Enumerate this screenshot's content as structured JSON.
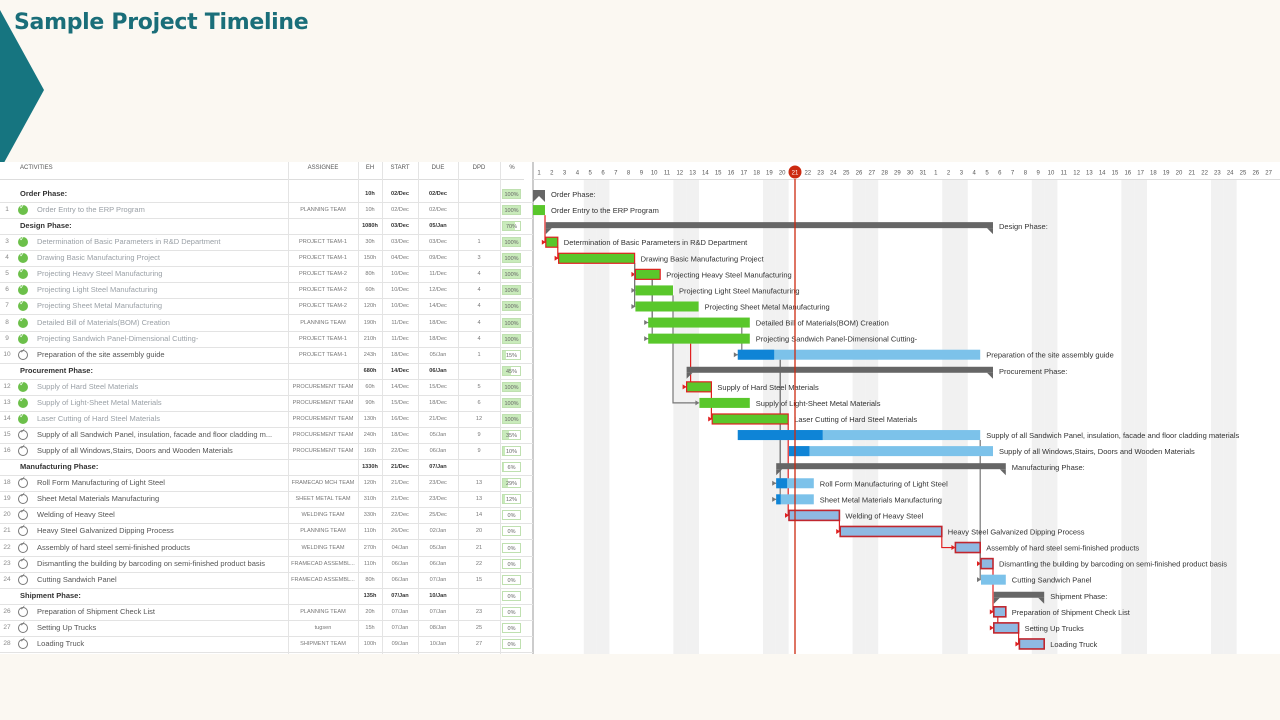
{
  "title": "Sample Project Timeline",
  "columns": {
    "activities": "ACTIVITIES",
    "assignee": "ASSIGNEE",
    "eh": "EH",
    "start": "START",
    "due": "DUE",
    "dpd": "DPD",
    "pct": "%"
  },
  "today": "21",
  "days": [
    "1",
    "2",
    "3",
    "4",
    "5",
    "6",
    "7",
    "8",
    "9",
    "10",
    "11",
    "12",
    "13",
    "14",
    "15",
    "16",
    "17",
    "18",
    "19",
    "20",
    "21",
    "22",
    "23",
    "24",
    "25",
    "26",
    "27",
    "28",
    "29",
    "30",
    "31",
    "1",
    "2",
    "3",
    "4",
    "5",
    "6",
    "7",
    "8",
    "9",
    "10",
    "11",
    "12",
    "13",
    "14",
    "15",
    "16",
    "17",
    "18",
    "19",
    "20",
    "21",
    "22",
    "23",
    "24",
    "25",
    "26",
    "27"
  ],
  "colors": {
    "done": "#59c72b",
    "active": "#0f84d6",
    "light": "#7cc2ea",
    "late": "#e02020",
    "phase": "#666666",
    "today": "#cc2a10",
    "teal": "#167580"
  },
  "rows": [
    {
      "num": "",
      "name": "Order Phase:",
      "assignee": "",
      "eh": "10h",
      "start": "02/Dec",
      "due": "02/Dec",
      "dpd": "",
      "pct": "100%",
      "p": 100,
      "type": "phase",
      "bar": [
        1,
        1
      ],
      "label": "Order Phase:"
    },
    {
      "num": "1",
      "name": "Order Entry to the ERP Program",
      "assignee": "PLANNING TEAM",
      "eh": "10h",
      "start": "02/Dec",
      "due": "02/Dec",
      "dpd": "",
      "pct": "100%",
      "p": 100,
      "type": "done",
      "bar": [
        1,
        1
      ],
      "label": "Order Entry to the ERP Program"
    },
    {
      "num": "",
      "name": "Design Phase:",
      "assignee": "",
      "eh": "1080h",
      "start": "03/Dec",
      "due": "05/Jan",
      "dpd": "",
      "pct": "70%",
      "p": 70,
      "type": "phase",
      "bar": [
        2,
        36
      ],
      "label": "Design Phase:"
    },
    {
      "num": "3",
      "name": "Determination of Basic Parameters in R&D Department",
      "assignee": "PROJECT TEAM-1",
      "eh": "30h",
      "start": "03/Dec",
      "due": "03/Dec",
      "dpd": "1",
      "pct": "100%",
      "p": 100,
      "type": "done",
      "bar": [
        2,
        2
      ],
      "label": "Determination of Basic Parameters in R&D Department"
    },
    {
      "num": "4",
      "name": "Drawing Basic Manufacturing Project",
      "assignee": "PROJECT TEAM-1",
      "eh": "150h",
      "start": "04/Dec",
      "due": "09/Dec",
      "dpd": "3",
      "pct": "100%",
      "p": 100,
      "type": "done",
      "bar": [
        3,
        8
      ],
      "label": "Drawing Basic Manufacturing Project"
    },
    {
      "num": "5",
      "name": "Projecting Heavy Steel Manufacturing",
      "assignee": "PROJECT TEAM-2",
      "eh": "80h",
      "start": "10/Dec",
      "due": "11/Dec",
      "dpd": "4",
      "pct": "100%",
      "p": 100,
      "type": "done",
      "bar": [
        9,
        10
      ],
      "label": "Projecting Heavy Steel Manufacturing"
    },
    {
      "num": "6",
      "name": "Projecting Light Steel Manufacturing",
      "assignee": "PROJECT TEAM-2",
      "eh": "60h",
      "start": "10/Dec",
      "due": "12/Dec",
      "dpd": "4",
      "pct": "100%",
      "p": 100,
      "type": "done",
      "bar": [
        9,
        11
      ],
      "label": "Projecting Light Steel Manufacturing"
    },
    {
      "num": "7",
      "name": "Projecting Sheet Metal Manufacturing",
      "assignee": "PROJECT TEAM-2",
      "eh": "120h",
      "start": "10/Dec",
      "due": "14/Dec",
      "dpd": "4",
      "pct": "100%",
      "p": 100,
      "type": "done",
      "bar": [
        9,
        13
      ],
      "label": "Projecting Sheet Metal Manufacturing"
    },
    {
      "num": "8",
      "name": "Detailed Bill of Materials(BOM) Creation",
      "assignee": "PLANNING TEAM",
      "eh": "190h",
      "start": "11/Dec",
      "due": "18/Dec",
      "dpd": "4",
      "pct": "100%",
      "p": 100,
      "type": "done",
      "bar": [
        10,
        17
      ],
      "label": "Detailed Bill of Materials(BOM) Creation"
    },
    {
      "num": "9",
      "name": "Projecting Sandwich Panel-Dimensional Cutting-",
      "assignee": "PROJECT TEAM-1",
      "eh": "210h",
      "start": "11/Dec",
      "due": "18/Dec",
      "dpd": "4",
      "pct": "100%",
      "p": 100,
      "type": "done",
      "bar": [
        10,
        17
      ],
      "label": "Projecting Sandwich Panel-Dimensional Cutting-"
    },
    {
      "num": "10",
      "name": "Preparation of the site assembly guide",
      "assignee": "PROJECT TEAM-1",
      "eh": "243h",
      "start": "18/Dec",
      "due": "05/Jan",
      "dpd": "1",
      "pct": "15%",
      "p": 15,
      "type": "active",
      "bar": [
        17,
        35
      ],
      "label": "Preparation of the site assembly guide"
    },
    {
      "num": "",
      "name": "Procurement Phase:",
      "assignee": "",
      "eh": "680h",
      "start": "14/Dec",
      "due": "06/Jan",
      "dpd": "",
      "pct": "45%",
      "p": 45,
      "type": "phase",
      "bar": [
        13,
        36
      ],
      "label": "Procurement Phase:"
    },
    {
      "num": "12",
      "name": "Supply of Hard Steel Materials",
      "assignee": "PROCUREMENT TEAM",
      "eh": "60h",
      "start": "14/Dec",
      "due": "15/Dec",
      "dpd": "5",
      "pct": "100%",
      "p": 100,
      "type": "done",
      "bar": [
        13,
        14
      ],
      "label": "Supply of Hard Steel Materials"
    },
    {
      "num": "13",
      "name": "Supply of Light-Sheet Metal Materials",
      "assignee": "PROCUREMENT TEAM",
      "eh": "90h",
      "start": "15/Dec",
      "due": "18/Dec",
      "dpd": "6",
      "pct": "100%",
      "p": 100,
      "type": "done",
      "bar": [
        14,
        17
      ],
      "label": "Supply of Light-Sheet Metal Materials"
    },
    {
      "num": "14",
      "name": "Laser Cutting of Hard Steel Materials",
      "assignee": "PROCUREMENT TEAM",
      "eh": "130h",
      "start": "16/Dec",
      "due": "21/Dec",
      "dpd": "12",
      "pct": "100%",
      "p": 100,
      "type": "done",
      "bar": [
        15,
        20
      ],
      "label": "Laser Cutting of Hard Steel Materials"
    },
    {
      "num": "15",
      "name": "Supply of all Sandwich Panel, insulation, facade and floor cladding m...",
      "assignee": "PROCUREMENT TEAM",
      "eh": "240h",
      "start": "18/Dec",
      "due": "05/Jan",
      "dpd": "9",
      "pct": "35%",
      "p": 35,
      "type": "active",
      "bar": [
        17,
        35
      ],
      "label": "Supply of all Sandwich Panel, insulation, facade and floor cladding materials"
    },
    {
      "num": "16",
      "name": "Supply of all Windows,Stairs, Doors and Wooden Materials",
      "assignee": "PROCUREMENT TEAM",
      "eh": "160h",
      "start": "22/Dec",
      "due": "06/Jan",
      "dpd": "9",
      "pct": "10%",
      "p": 10,
      "type": "active",
      "bar": [
        21,
        36
      ],
      "label": "Supply of all Windows,Stairs, Doors and Wooden Materials"
    },
    {
      "num": "",
      "name": "Manufacturing Phase:",
      "assignee": "",
      "eh": "1330h",
      "start": "21/Dec",
      "due": "07/Jan",
      "dpd": "",
      "pct": "6%",
      "p": 6,
      "type": "phase",
      "bar": [
        20,
        37
      ],
      "label": "Manufacturing Phase:"
    },
    {
      "num": "18",
      "name": "Roll Form Manufacturing of Light Steel",
      "assignee": "FRAMECAD MCH TEAM",
      "eh": "120h",
      "start": "21/Dec",
      "due": "23/Dec",
      "dpd": "13",
      "pct": "29%",
      "p": 29,
      "type": "active",
      "bar": [
        20,
        22
      ],
      "label": "Roll Form Manufacturing of Light Steel"
    },
    {
      "num": "19",
      "name": "Sheet Metal Materials Manufacturing",
      "assignee": "SHEET METAL TEAM",
      "eh": "310h",
      "start": "21/Dec",
      "due": "23/Dec",
      "dpd": "13",
      "pct": "12%",
      "p": 12,
      "type": "active",
      "bar": [
        20,
        22
      ],
      "label": "Sheet Metal Materials Manufacturing"
    },
    {
      "num": "20",
      "name": "Welding of Heavy Steel",
      "assignee": "WELDING TEAM",
      "eh": "330h",
      "start": "22/Dec",
      "due": "25/Dec",
      "dpd": "14",
      "pct": "0%",
      "p": 0,
      "type": "late",
      "bar": [
        21,
        24
      ],
      "label": "Welding of Heavy Steel"
    },
    {
      "num": "21",
      "name": "Heavy Steel Galvanized Dipping Process",
      "assignee": "PLANNING TEAM",
      "eh": "110h",
      "start": "26/Dec",
      "due": "02/Jan",
      "dpd": "20",
      "pct": "0%",
      "p": 0,
      "type": "late",
      "bar": [
        25,
        32
      ],
      "label": "Heavy Steel Galvanized Dipping Process"
    },
    {
      "num": "22",
      "name": "Assembly of hard steel semi-finished products",
      "assignee": "WELDING TEAM",
      "eh": "270h",
      "start": "04/Jan",
      "due": "05/Jan",
      "dpd": "21",
      "pct": "0%",
      "p": 0,
      "type": "late",
      "bar": [
        34,
        35
      ],
      "label": "Assembly of hard steel semi-finished products"
    },
    {
      "num": "23",
      "name": "Dismantling the building by barcoding on semi-finished product basis",
      "assignee": "FRAMECAD ASSEMBL...",
      "eh": "110h",
      "start": "06/Jan",
      "due": "06/Jan",
      "dpd": "22",
      "pct": "0%",
      "p": 0,
      "type": "late",
      "bar": [
        36,
        36
      ],
      "label": "Dismantling the building by barcoding on semi-finished product basis"
    },
    {
      "num": "24",
      "name": "Cutting Sandwich Panel",
      "assignee": "FRAMECAD ASSEMBL...",
      "eh": "80h",
      "start": "06/Jan",
      "due": "07/Jan",
      "dpd": "15",
      "pct": "0%",
      "p": 0,
      "type": "light",
      "bar": [
        36,
        37
      ],
      "label": "Cutting Sandwich Panel"
    },
    {
      "num": "",
      "name": "Shipment Phase:",
      "assignee": "",
      "eh": "135h",
      "start": "07/Jan",
      "due": "10/Jan",
      "dpd": "",
      "pct": "0%",
      "p": 0,
      "type": "phase",
      "bar": [
        37,
        40
      ],
      "label": "Shipment Phase:"
    },
    {
      "num": "26",
      "name": "Preparation of Shipment Check List",
      "assignee": "PLANNING TEAM",
      "eh": "20h",
      "start": "07/Jan",
      "due": "07/Jan",
      "dpd": "23",
      "pct": "0%",
      "p": 0,
      "type": "late",
      "bar": [
        37,
        37
      ],
      "label": "Preparation of Shipment Check List"
    },
    {
      "num": "27",
      "name": "Setting Up Trucks",
      "assignee": "tugsen",
      "eh": "15h",
      "start": "07/Jan",
      "due": "08/Jan",
      "dpd": "25",
      "pct": "0%",
      "p": 0,
      "type": "late",
      "bar": [
        37,
        38
      ],
      "label": "Setting Up Trucks"
    },
    {
      "num": "28",
      "name": "Loading Truck",
      "assignee": "SHIPMENT TEAM",
      "eh": "100h",
      "start": "09/Jan",
      "due": "10/Jan",
      "dpd": "27",
      "pct": "0%",
      "p": 0,
      "type": "late",
      "bar": [
        39,
        40
      ],
      "label": "Loading Truck"
    }
  ]
}
